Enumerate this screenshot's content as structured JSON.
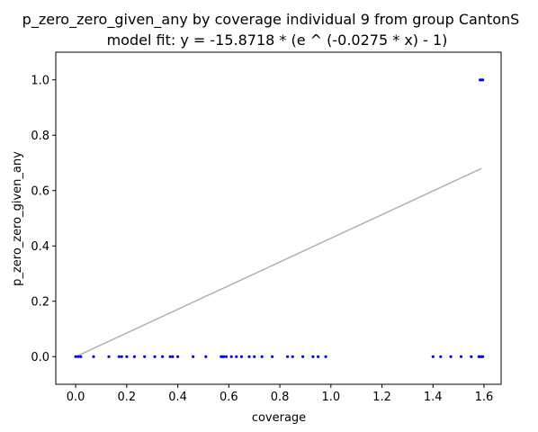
{
  "chart_data": {
    "type": "scatter",
    "title": "p_zero_zero_given_any by coverage individual 9 from group CantonS",
    "subtitle": "model fit: y = -15.8718 * (e ^ (-0.0275 * x) - 1)",
    "xlabel": "coverage",
    "ylabel": "p_zero_zero_given_any",
    "xlim": [
      -0.078,
      1.667
    ],
    "ylim": [
      -0.1,
      1.1
    ],
    "xticks": [
      0.0,
      0.2,
      0.4,
      0.6,
      0.8,
      1.0,
      1.2,
      1.4,
      1.6
    ],
    "xtick_labels": [
      "0.0",
      "0.2",
      "0.4",
      "0.6",
      "0.8",
      "1.0",
      "1.2",
      "1.4",
      "1.6"
    ],
    "yticks": [
      0.0,
      0.2,
      0.4,
      0.6,
      0.8,
      1.0
    ],
    "ytick_labels": [
      "0.0",
      "0.2",
      "0.4",
      "0.6",
      "0.8",
      "1.0"
    ],
    "grid": false,
    "series": [
      {
        "kind": "scatter",
        "color": "#0000ff",
        "x": [
          0.0,
          0.01,
          0.02,
          0.07,
          0.13,
          0.17,
          0.18,
          0.2,
          0.23,
          0.27,
          0.31,
          0.34,
          0.37,
          0.38,
          0.4,
          0.46,
          0.51,
          0.57,
          0.575,
          0.58,
          0.59,
          0.61,
          0.63,
          0.65,
          0.68,
          0.7,
          0.73,
          0.77,
          0.83,
          0.85,
          0.89,
          0.93,
          0.95,
          0.98,
          1.4,
          1.43,
          1.47,
          1.51,
          1.55,
          1.58,
          1.585,
          1.59,
          1.595,
          1.585,
          1.59,
          1.595
        ],
        "y": [
          0,
          0,
          0,
          0,
          0,
          0,
          0,
          0,
          0,
          0,
          0,
          0,
          0,
          0,
          0,
          0,
          0,
          0,
          0,
          0,
          0,
          0,
          0,
          0,
          0,
          0,
          0,
          0,
          0,
          0,
          0,
          0,
          0,
          0,
          0,
          0,
          0,
          0,
          0,
          0,
          0,
          0,
          0,
          1,
          1,
          1
        ]
      },
      {
        "kind": "line",
        "color": "#b0b0b0",
        "x": [
          0.0,
          1.59
        ],
        "y": [
          0.0,
          0.68
        ]
      }
    ]
  }
}
